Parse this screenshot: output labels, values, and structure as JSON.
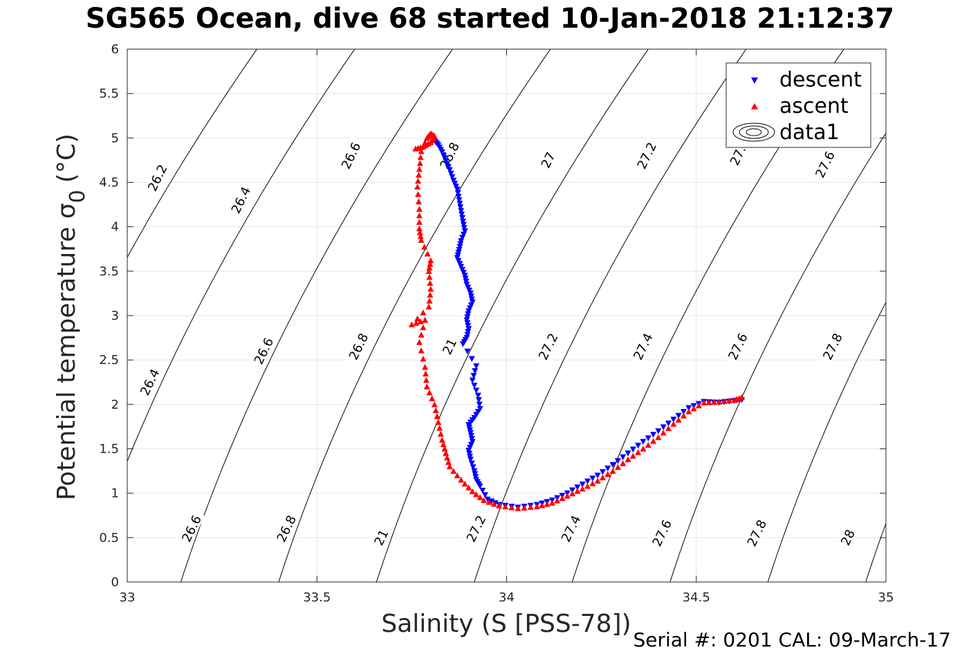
{
  "title": "SG565 Ocean, dive 68 started 10-Jan-2018 21:12:37",
  "serial_line": "Serial #: 0201  CAL: 09-March-17",
  "colors": {
    "descent": "#0000ff",
    "ascent": "#ff0000",
    "contour": "#000000",
    "grid": "#e5e5e5"
  },
  "chart_data": {
    "type": "scatter",
    "xlabel": "Salinity (S [PSS-78])",
    "ylabel_main": "Potential temperature σ",
    "ylabel_sub": "0",
    "ylabel_unit": "(°C)",
    "xlim": [
      33,
      35
    ],
    "ylim": [
      0,
      6
    ],
    "x_ticks": [
      33,
      33.5,
      34,
      34.5,
      35
    ],
    "x_tick_labels": [
      "33",
      "33.5",
      "34",
      "34.5",
      "35"
    ],
    "y_ticks": [
      0,
      0.5,
      1,
      1.5,
      2,
      2.5,
      3,
      3.5,
      4,
      4.5,
      5,
      5.5,
      6
    ],
    "y_tick_labels": [
      "0",
      "0.5",
      "1",
      "1.5",
      "2",
      "2.5",
      "3",
      "3.5",
      "4",
      "4.5",
      "5",
      "5.5",
      "6"
    ],
    "grid": true,
    "legend_position": "top-right",
    "legend": [
      "descent",
      "ascent",
      "data1"
    ],
    "isopycnals": [
      26.2,
      26.4,
      26.6,
      26.8,
      27,
      27.2,
      27.4,
      27.6,
      27.8,
      28
    ],
    "isopycnal_labels": [
      {
        "text": "26.2",
        "x": 33.08,
        "y": 4.55
      },
      {
        "text": "26.4",
        "x": 33.3,
        "y": 4.3
      },
      {
        "text": "26.6",
        "x": 33.59,
        "y": 4.8
      },
      {
        "text": "26.8",
        "x": 33.85,
        "y": 4.8
      },
      {
        "text": "27",
        "x": 34.11,
        "y": 4.75
      },
      {
        "text": "27.2",
        "x": 34.37,
        "y": 4.8
      },
      {
        "text": "27.",
        "x": 34.61,
        "y": 4.8
      },
      {
        "text": "27.6",
        "x": 34.84,
        "y": 4.7
      },
      {
        "text": "26.4",
        "x": 33.06,
        "y": 2.25
      },
      {
        "text": "26.6",
        "x": 33.36,
        "y": 2.6
      },
      {
        "text": "26.8",
        "x": 33.61,
        "y": 2.65
      },
      {
        "text": "21",
        "x": 33.85,
        "y": 2.65
      },
      {
        "text": "27.2",
        "x": 34.11,
        "y": 2.65
      },
      {
        "text": "27.4",
        "x": 34.36,
        "y": 2.65
      },
      {
        "text": "27.6",
        "x": 34.61,
        "y": 2.65
      },
      {
        "text": "27.8",
        "x": 34.86,
        "y": 2.65
      },
      {
        "text": "26.6",
        "x": 33.17,
        "y": 0.6
      },
      {
        "text": "26.8",
        "x": 33.42,
        "y": 0.6
      },
      {
        "text": "21",
        "x": 33.67,
        "y": 0.5
      },
      {
        "text": "27.2",
        "x": 33.92,
        "y": 0.6
      },
      {
        "text": "27.4",
        "x": 34.17,
        "y": 0.6
      },
      {
        "text": "27.6",
        "x": 34.41,
        "y": 0.55
      },
      {
        "text": "27.8",
        "x": 34.66,
        "y": 0.55
      },
      {
        "text": "28",
        "x": 34.9,
        "y": 0.5
      }
    ],
    "series": [
      {
        "name": "descent",
        "marker": "triangle-down",
        "points": [
          [
            33.81,
            4.97
          ],
          [
            33.82,
            4.92
          ],
          [
            33.83,
            4.84
          ],
          [
            33.84,
            4.74
          ],
          [
            33.85,
            4.64
          ],
          [
            33.86,
            4.52
          ],
          [
            33.87,
            4.42
          ],
          [
            33.875,
            4.3
          ],
          [
            33.88,
            4.18
          ],
          [
            33.885,
            4.06
          ],
          [
            33.89,
            3.95
          ],
          [
            33.88,
            3.84
          ],
          [
            33.875,
            3.74
          ],
          [
            33.87,
            3.65
          ],
          [
            33.88,
            3.55
          ],
          [
            33.89,
            3.45
          ],
          [
            33.895,
            3.35
          ],
          [
            33.905,
            3.25
          ],
          [
            33.91,
            3.15
          ],
          [
            33.9,
            3.05
          ],
          [
            33.895,
            2.95
          ],
          [
            33.9,
            2.85
          ],
          [
            33.895,
            2.75
          ],
          [
            33.885,
            2.68
          ],
          [
            33.92,
            2.43
          ],
          [
            33.91,
            2.27
          ],
          [
            33.925,
            2.1
          ],
          [
            33.93,
            1.95
          ],
          [
            33.915,
            1.85
          ],
          [
            33.9,
            1.77
          ],
          [
            33.905,
            1.68
          ],
          [
            33.91,
            1.58
          ],
          [
            33.9,
            1.48
          ],
          [
            33.905,
            1.38
          ],
          [
            33.915,
            1.25
          ],
          [
            33.92,
            1.15
          ],
          [
            33.93,
            1.08
          ],
          [
            33.95,
            0.93
          ],
          [
            33.98,
            0.87
          ],
          [
            34.03,
            0.84
          ],
          [
            34.08,
            0.87
          ],
          [
            34.12,
            0.92
          ],
          [
            34.16,
            1.0
          ],
          [
            34.2,
            1.1
          ],
          [
            34.24,
            1.2
          ],
          [
            34.28,
            1.32
          ],
          [
            34.32,
            1.45
          ],
          [
            34.36,
            1.58
          ],
          [
            34.4,
            1.7
          ],
          [
            34.44,
            1.83
          ],
          [
            34.48,
            1.96
          ],
          [
            34.52,
            2.03
          ],
          [
            34.56,
            2.02
          ],
          [
            34.6,
            2.04
          ],
          [
            34.62,
            2.05
          ]
        ]
      },
      {
        "name": "ascent",
        "marker": "triangle-up",
        "points": [
          [
            34.62,
            2.08
          ],
          [
            34.6,
            2.05
          ],
          [
            34.56,
            2.03
          ],
          [
            34.52,
            2.02
          ],
          [
            34.48,
            1.92
          ],
          [
            34.44,
            1.78
          ],
          [
            34.4,
            1.63
          ],
          [
            34.36,
            1.5
          ],
          [
            34.32,
            1.38
          ],
          [
            34.28,
            1.25
          ],
          [
            34.24,
            1.14
          ],
          [
            34.2,
            1.05
          ],
          [
            34.16,
            0.97
          ],
          [
            34.12,
            0.89
          ],
          [
            34.08,
            0.85
          ],
          [
            34.03,
            0.83
          ],
          [
            33.98,
            0.86
          ],
          [
            33.94,
            0.92
          ],
          [
            33.91,
            1.02
          ],
          [
            33.88,
            1.15
          ],
          [
            33.85,
            1.3
          ],
          [
            33.84,
            1.45
          ],
          [
            33.83,
            1.6
          ],
          [
            33.82,
            1.8
          ],
          [
            33.81,
            2.0
          ],
          [
            33.79,
            2.2
          ],
          [
            33.785,
            2.42
          ],
          [
            33.77,
            2.7
          ],
          [
            33.785,
            2.95
          ],
          [
            33.75,
            2.9
          ],
          [
            33.795,
            3.1
          ],
          [
            33.8,
            3.3
          ],
          [
            33.795,
            3.5
          ],
          [
            33.8,
            3.62
          ],
          [
            33.775,
            3.85
          ],
          [
            33.77,
            3.98
          ],
          [
            33.77,
            4.2
          ],
          [
            33.765,
            4.45
          ],
          [
            33.77,
            4.65
          ],
          [
            33.775,
            4.85
          ],
          [
            33.79,
            5.0
          ],
          [
            33.8,
            5.05
          ],
          [
            33.81,
            5.02
          ],
          [
            33.8,
            4.95
          ],
          [
            33.78,
            4.9
          ],
          [
            33.76,
            4.88
          ]
        ]
      }
    ]
  }
}
